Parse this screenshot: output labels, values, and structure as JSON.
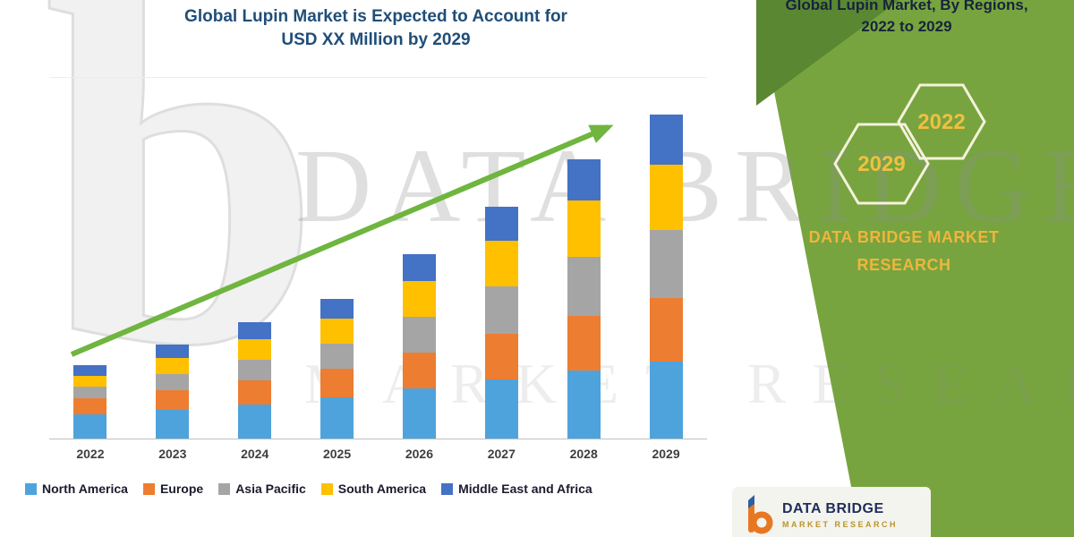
{
  "colors": {
    "title_blue": "#1F4E79",
    "arrow_green": "#6FB53F",
    "panel_green": "#77A43F",
    "panel_green_dark": "#5A8731",
    "hex_stroke": "#F5F2DC",
    "gold": "#F0B53C",
    "logo_orange": "#E87722",
    "logo_blue": "#2E5FA3"
  },
  "header": {
    "title_line1": "Global Lupin Market is Expected to Account for",
    "title_line2": "USD XX Million by 2029"
  },
  "chart_data": {
    "type": "bar",
    "stacked": true,
    "title": "Global Lupin Market is Expected to Account for USD XX Million by 2029",
    "value_note": "USD XX Million (values estimated from bar heights, relative units)",
    "categories": [
      "2022",
      "2023",
      "2024",
      "2025",
      "2026",
      "2027",
      "2028",
      "2029"
    ],
    "series": [
      {
        "name": "North America",
        "color": "#4FA3DC",
        "values": [
          27,
          32,
          38,
          45,
          55,
          65,
          75,
          85
        ]
      },
      {
        "name": "Europe",
        "color": "#ED7D31",
        "values": [
          18,
          22,
          27,
          32,
          40,
          50,
          60,
          70
        ]
      },
      {
        "name": "Asia Pacific",
        "color": "#A5A5A5",
        "values": [
          13,
          18,
          23,
          28,
          40,
          52,
          65,
          75
        ]
      },
      {
        "name": "South America",
        "color": "#FFC000",
        "values": [
          12,
          18,
          23,
          28,
          40,
          50,
          62,
          72
        ]
      },
      {
        "name": "Middle East and Africa",
        "color": "#4472C4",
        "values": [
          12,
          15,
          19,
          22,
          30,
          38,
          45,
          55
        ]
      }
    ],
    "totals": [
      82,
      105,
      130,
      155,
      205,
      255,
      307,
      357
    ],
    "ylim": [
      0,
      400
    ],
    "xlabel": "",
    "ylabel": "",
    "legend_position": "bottom",
    "grid": false,
    "trend_arrow": true
  },
  "panel": {
    "title_line1": "Global Lupin Market, By Regions,",
    "title_line2": "2022 to 2029",
    "hex_front": "2029",
    "hex_back": "2022",
    "brand_line1": "DATA BRIDGE MARKET",
    "brand_line2": "RESEARCH"
  },
  "footer_logo": {
    "brand": "DATA BRIDGE",
    "sub": "MARKET RESEARCH"
  },
  "watermarks": {
    "big_letter": "b",
    "main": "DATA BRIDGE",
    "secondary": "MARKET RESEARCH"
  }
}
